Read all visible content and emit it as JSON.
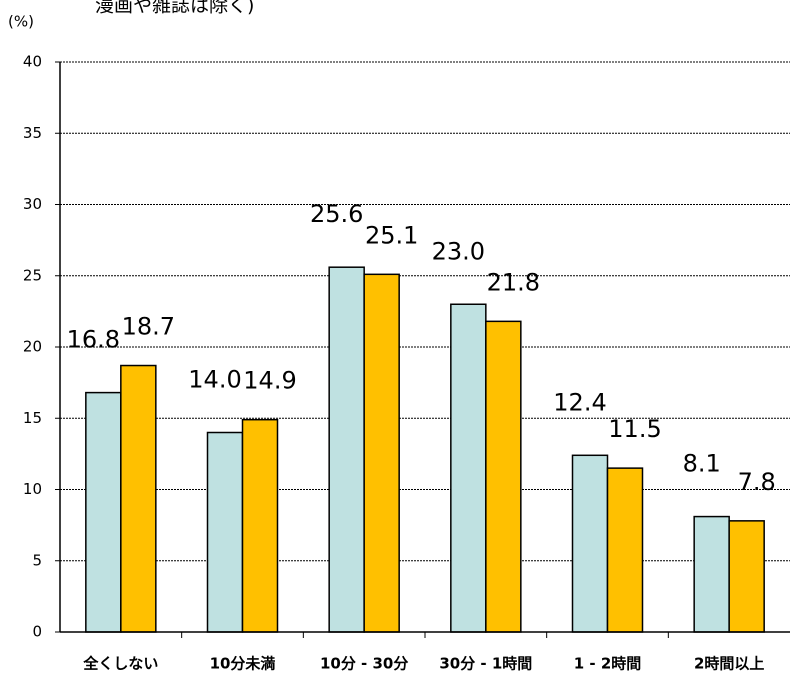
{
  "chart_data": {
    "type": "bar",
    "title": "漫画や雑誌は除く)",
    "y_label": "(%)",
    "categories": [
      "全くしない",
      "10分未満",
      "10分 - 30分",
      "30分 - 1時間",
      "1 - 2時間",
      "2時間以上"
    ],
    "series": [
      {
        "color": "#bfe1e1",
        "values": [
          16.8,
          14.0,
          25.6,
          23.0,
          12.4,
          8.1
        ],
        "value_labels": [
          "16.8",
          "14.0",
          "25.6",
          "23.0",
          "12.4",
          "8.1"
        ]
      },
      {
        "color": "#ffc000",
        "values": [
          18.7,
          14.9,
          25.1,
          21.8,
          11.5,
          7.8
        ],
        "value_labels": [
          "18.7",
          "14.9",
          "25.1",
          "21.8",
          "11.5",
          "7.8"
        ]
      }
    ],
    "ylim": [
      0,
      40
    ],
    "yticks": [
      0,
      5,
      10,
      15,
      20,
      25,
      30,
      35,
      40
    ],
    "grid": true
  }
}
